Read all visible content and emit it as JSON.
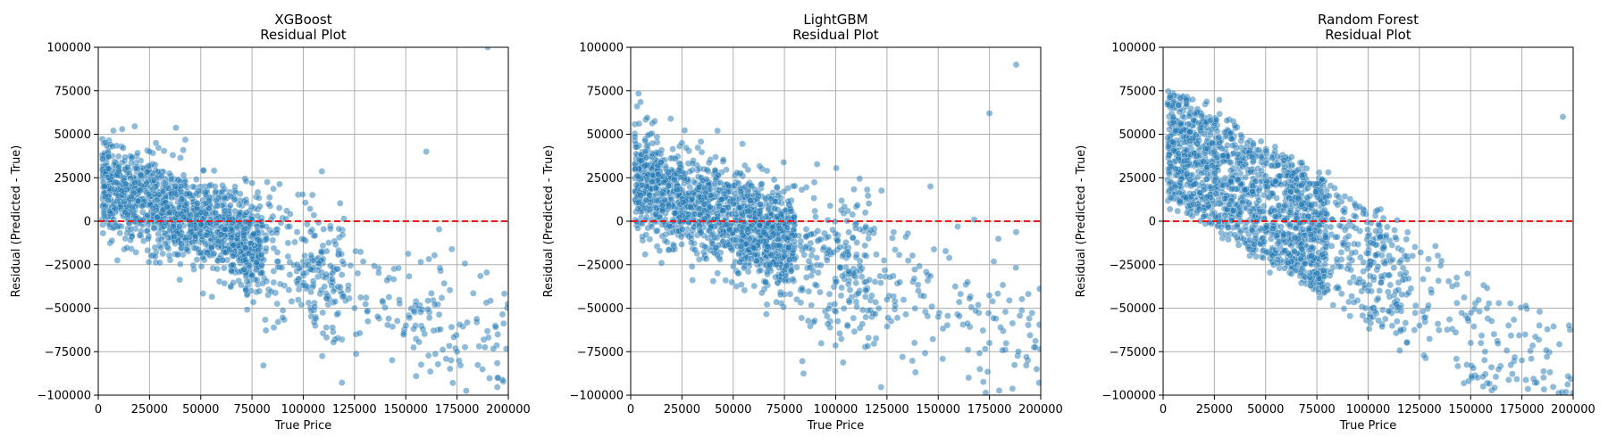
{
  "figure": {
    "xtick_labels": [
      "0",
      "25000",
      "50000",
      "75000",
      "100000",
      "125000",
      "150000",
      "175000",
      "200000"
    ],
    "ytick_labels": [
      "100000",
      "75000",
      "50000",
      "25000",
      "0",
      "−25000",
      "−50000",
      "−75000",
      "−100000"
    ]
  },
  "colors": {
    "point": "#1f77b4",
    "zero_line": "#e41a1c",
    "grid": "#b0b0b0"
  },
  "chart_data": [
    {
      "type": "scatter",
      "title": "XGBoost\nResidual Plot",
      "xlabel": "True Price",
      "ylabel": "Residual (Predicted - True)",
      "xlim": [
        0,
        200000
      ],
      "ylim": [
        -100000,
        100000
      ],
      "grid": true,
      "reference_line": {
        "y": 0,
        "style": "dashed",
        "color": "red"
      },
      "pattern": {
        "offset_at_zero": 22000,
        "slope": -0.78,
        "spread_core": 22000,
        "spread_tail": 35000,
        "n_points": 1700,
        "seed": 11
      },
      "sample_points": [
        [
          5000,
          30000
        ],
        [
          25000,
          40000
        ],
        [
          50000,
          5000
        ],
        [
          75000,
          -20000
        ],
        [
          100000,
          -30000
        ],
        [
          125000,
          -50000
        ],
        [
          150000,
          -60000
        ],
        [
          175000,
          -75000
        ],
        [
          195000,
          -90000
        ],
        [
          190000,
          100000
        ],
        [
          160000,
          40000
        ]
      ]
    },
    {
      "type": "scatter",
      "title": "LightGBM\nResidual Plot",
      "xlabel": "True Price",
      "ylabel": "Residual (Predicted - True)",
      "xlim": [
        0,
        200000
      ],
      "ylim": [
        -100000,
        100000
      ],
      "grid": true,
      "reference_line": {
        "y": 0,
        "style": "dashed",
        "color": "red"
      },
      "pattern": {
        "offset_at_zero": 24000,
        "slope": -0.8,
        "spread_core": 24000,
        "spread_tail": 40000,
        "n_points": 1800,
        "seed": 23
      },
      "sample_points": [
        [
          5000,
          35000
        ],
        [
          25000,
          45000
        ],
        [
          50000,
          10000
        ],
        [
          75000,
          -20000
        ],
        [
          100000,
          -35000
        ],
        [
          125000,
          -45000
        ],
        [
          150000,
          -55000
        ],
        [
          175000,
          -70000
        ],
        [
          198000,
          -85000
        ],
        [
          188000,
          90000
        ],
        [
          175000,
          62000
        ]
      ]
    },
    {
      "type": "scatter",
      "title": "Random Forest\nResidual Plot",
      "xlabel": "True Price",
      "ylabel": "Residual (Predicted - True)",
      "xlim": [
        0,
        200000
      ],
      "ylim": [
        -100000,
        100000
      ],
      "grid": true,
      "reference_line": {
        "y": 0,
        "style": "dashed",
        "color": "red"
      },
      "pattern": {
        "offset_at_zero": 20000,
        "slope": -0.95,
        "spread_core": 14000,
        "spread_tail": 22000,
        "n_points": 1800,
        "seed": 37,
        "banded": true
      },
      "sample_points": [
        [
          5000,
          60000
        ],
        [
          25000,
          40000
        ],
        [
          50000,
          20000
        ],
        [
          75000,
          -30000
        ],
        [
          100000,
          -40000
        ],
        [
          125000,
          -60000
        ],
        [
          150000,
          -70000
        ],
        [
          175000,
          -80000
        ],
        [
          198000,
          -60000
        ],
        [
          195000,
          60000
        ]
      ]
    }
  ]
}
